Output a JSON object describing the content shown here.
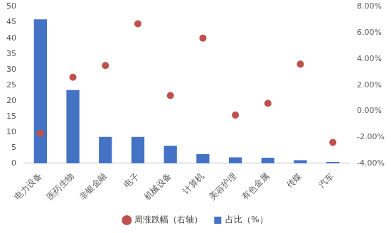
{
  "chart_data": {
    "type": "bar",
    "categories": [
      "电力设备",
      "医药生物",
      "非银金融",
      "电子",
      "机械设备",
      "计算机",
      "美容护理",
      "有色金属",
      "传媒",
      "汽车"
    ],
    "series": [
      {
        "name": "占比（%）",
        "type": "bar",
        "color": "#4472c4",
        "values": [
          46,
          23.4,
          8.4,
          8.4,
          5.6,
          2.9,
          1.9,
          1.8,
          1.0,
          0.4
        ]
      },
      {
        "name": "周涨跌幅（右轴）",
        "type": "scatter",
        "axis": "y2",
        "color": "#c0504d",
        "marker": "circle",
        "values": [
          -1.7,
          2.6,
          3.5,
          6.7,
          1.2,
          5.6,
          -0.3,
          0.6,
          3.6,
          -2.4
        ]
      }
    ],
    "ylim": [
      0,
      50
    ],
    "yticks": [
      0,
      5,
      10,
      15,
      20,
      25,
      30,
      35,
      40,
      45,
      50
    ],
    "y2lim": [
      -4,
      8
    ],
    "y2ticks": [
      {
        "value": -4,
        "label": "-4.00%"
      },
      {
        "value": -2,
        "label": "-2.00%"
      },
      {
        "value": 0,
        "label": "0.00%"
      },
      {
        "value": 2,
        "label": "2.00%"
      },
      {
        "value": 4,
        "label": "4.00%"
      },
      {
        "value": 6,
        "label": "6.00%"
      },
      {
        "value": 8,
        "label": "8.00%"
      }
    ],
    "grid": false,
    "legend": "bottom"
  }
}
